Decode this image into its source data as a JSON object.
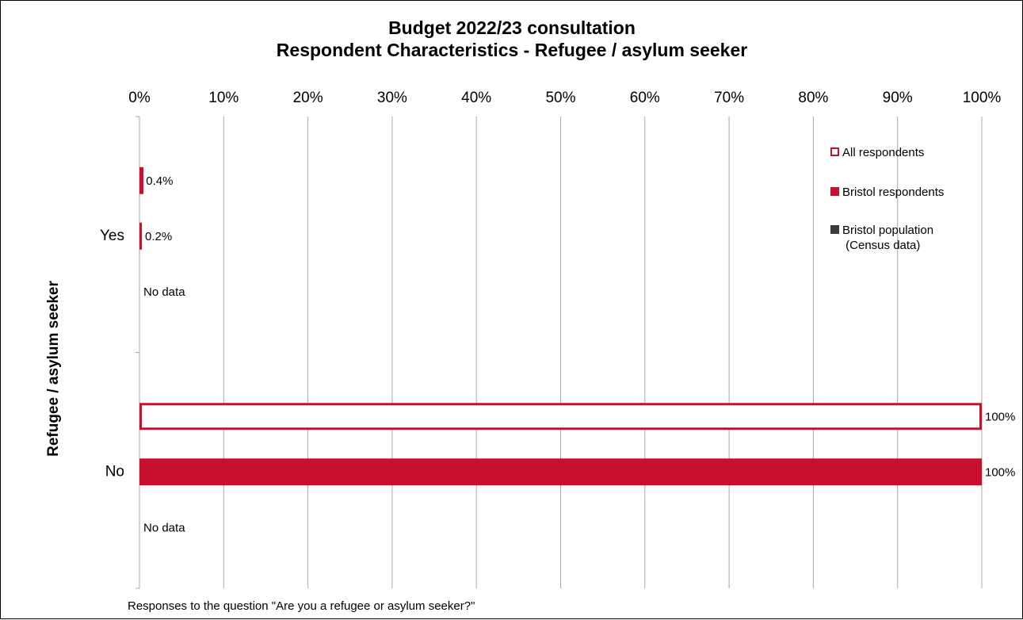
{
  "chart_data": {
    "type": "bar",
    "orientation": "horizontal",
    "title": "Budget 2022/23 consultation",
    "subtitle": "Respondent Characteristics - Refugee / asylum seeker",
    "ylabel": "Refugee / asylum seeker",
    "xlabel": "Responses to the question \"Are you a refugee or asylum seeker?\"",
    "xlim": [
      0,
      100
    ],
    "x_ticks": [
      "0%",
      "10%",
      "20%",
      "30%",
      "40%",
      "50%",
      "60%",
      "70%",
      "80%",
      "90%",
      "100%"
    ],
    "grid": true,
    "legend_position": "top-right",
    "categories": [
      "Yes",
      "No"
    ],
    "series": [
      {
        "name": "All respondents",
        "style": "outline",
        "color": "#c8102e",
        "values": [
          0.4,
          100
        ],
        "labels": [
          "0.4%",
          "100%"
        ]
      },
      {
        "name": "Bristol respondents",
        "style": "filled",
        "color": "#c8102e",
        "values": [
          0.2,
          100
        ],
        "labels": [
          "0.2%",
          "100%"
        ]
      },
      {
        "name": "Bristol population\n(Census data)",
        "style": "filled",
        "color": "#3a3a40",
        "values": [
          null,
          null
        ],
        "labels": [
          "No data",
          "No data"
        ]
      }
    ]
  }
}
